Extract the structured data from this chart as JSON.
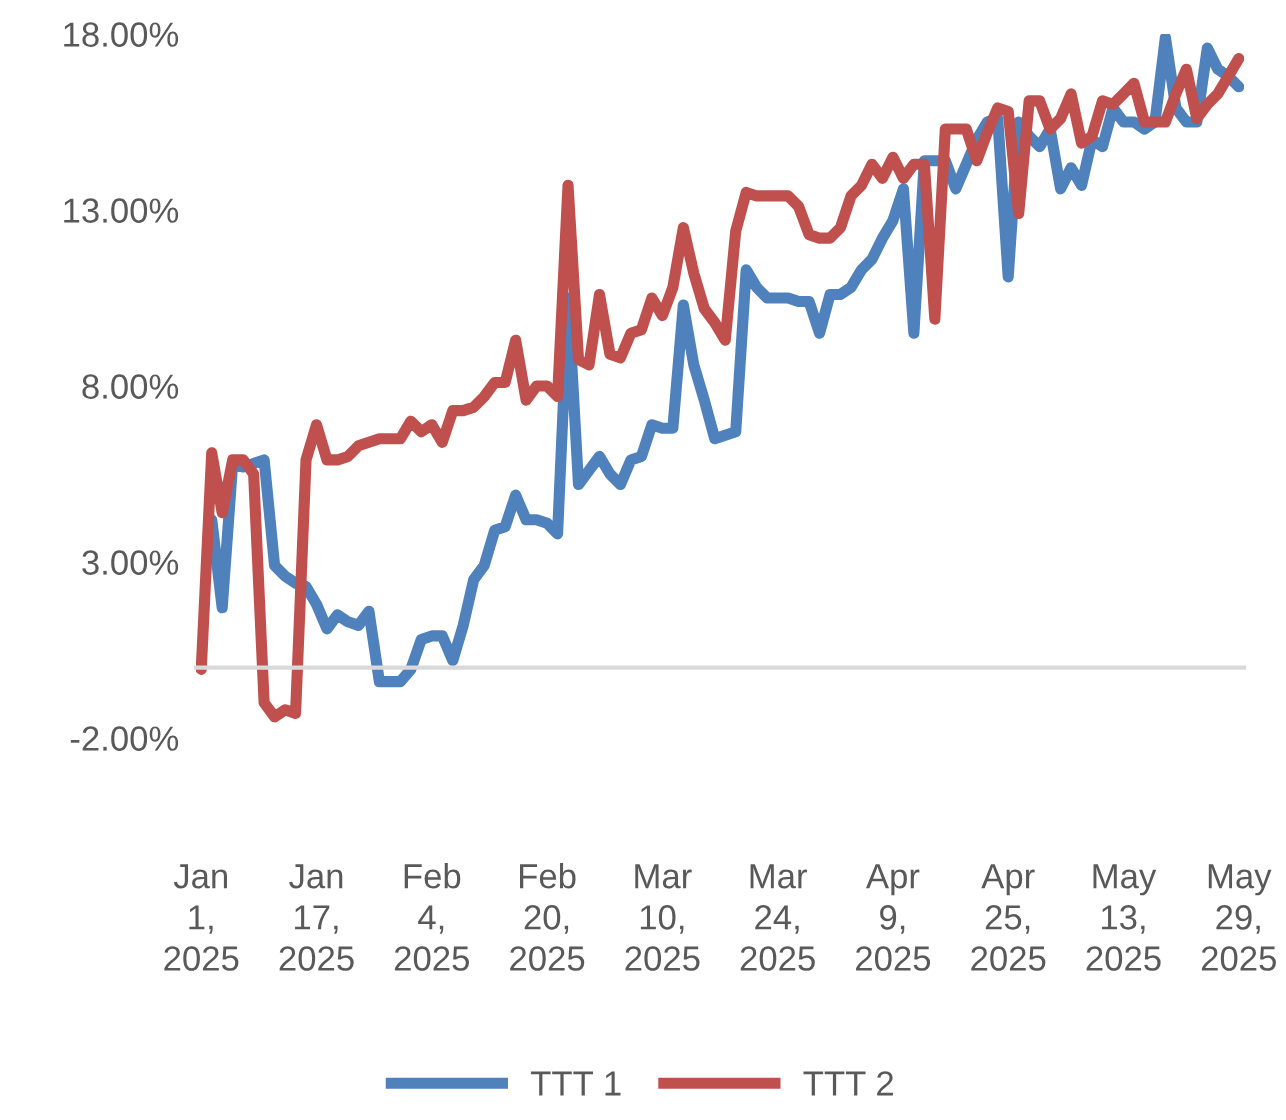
{
  "chart_data": {
    "type": "line",
    "categories": [
      "Jan 1, 2025",
      null,
      null,
      null,
      null,
      null,
      null,
      null,
      null,
      null,
      null,
      "Jan 17, 2025",
      null,
      null,
      null,
      null,
      null,
      null,
      null,
      null,
      null,
      null,
      "Feb 4, 2025",
      null,
      null,
      null,
      null,
      null,
      null,
      null,
      null,
      null,
      null,
      "Feb 20, 2025",
      null,
      null,
      null,
      null,
      null,
      null,
      null,
      null,
      null,
      null,
      "Mar 10, 2025",
      null,
      null,
      null,
      null,
      null,
      null,
      null,
      null,
      null,
      null,
      "Mar 24, 2025",
      null,
      null,
      null,
      null,
      null,
      null,
      null,
      null,
      null,
      null,
      "Apr 9, 2025",
      null,
      null,
      null,
      null,
      null,
      null,
      null,
      null,
      null,
      null,
      "Apr 25, 2025",
      null,
      null,
      null,
      null,
      null,
      null,
      null,
      null,
      null,
      null,
      "May 13, 2025",
      null,
      null,
      null,
      null,
      null,
      null,
      null,
      null,
      null,
      null,
      "May 29, 2025"
    ],
    "series": [
      {
        "name": "TTT 1",
        "color": "#4f81bd",
        "values": [
          null,
          4.2,
          1.7,
          5.8,
          5.7,
          5.8,
          5.9,
          2.9,
          2.6,
          2.4,
          2.3,
          1.8,
          1.1,
          1.5,
          1.3,
          1.2,
          1.6,
          -0.4,
          -0.4,
          -0.4,
          -0.05,
          0.8,
          0.9,
          0.9,
          0.2,
          1.2,
          2.5,
          2.9,
          3.9,
          4.0,
          4.9,
          4.2,
          4.2,
          4.1,
          3.8,
          10.5,
          5.2,
          5.6,
          6.0,
          5.5,
          5.2,
          5.9,
          6.0,
          6.9,
          6.8,
          6.8,
          10.3,
          8.6,
          7.6,
          6.5,
          6.6,
          6.7,
          11.3,
          10.8,
          10.5,
          10.5,
          10.5,
          10.4,
          10.4,
          9.5,
          10.6,
          10.6,
          10.8,
          11.3,
          11.6,
          12.2,
          12.7,
          13.6,
          9.5,
          14.4,
          14.4,
          14.4,
          13.6,
          14.3,
          15.0,
          15.5,
          15.6,
          11.1,
          15.5,
          15.1,
          14.8,
          15.3,
          13.6,
          14.2,
          13.7,
          15.0,
          14.8,
          15.9,
          15.5,
          15.5,
          15.3,
          15.5,
          17.9,
          15.9,
          15.5,
          15.5,
          17.6,
          17.0,
          16.8,
          16.5
        ]
      },
      {
        "name": "TTT 2",
        "color": "#c0504d",
        "values": [
          -0.05,
          6.1,
          4.4,
          5.9,
          5.9,
          5.5,
          -1.0,
          -1.4,
          -1.2,
          -1.3,
          5.9,
          6.9,
          5.9,
          5.9,
          6.0,
          6.3,
          6.4,
          6.5,
          6.5,
          6.5,
          7.0,
          6.7,
          6.9,
          6.4,
          7.3,
          7.3,
          7.4,
          7.7,
          8.1,
          8.1,
          9.3,
          7.6,
          8.0,
          8.0,
          7.7,
          13.7,
          8.75,
          8.6,
          10.6,
          8.9,
          8.8,
          9.5,
          9.6,
          10.5,
          10.0,
          10.8,
          12.5,
          11.2,
          10.2,
          9.8,
          9.3,
          12.4,
          13.5,
          13.4,
          13.4,
          13.4,
          13.4,
          13.1,
          12.3,
          12.2,
          12.2,
          12.5,
          13.4,
          13.7,
          14.3,
          13.9,
          14.5,
          13.9,
          14.3,
          14.3,
          9.9,
          15.3,
          15.3,
          15.3,
          14.4,
          15.2,
          15.9,
          15.8,
          12.9,
          16.1,
          16.1,
          15.3,
          15.6,
          16.3,
          14.9,
          15.1,
          16.1,
          16.0,
          16.3,
          16.6,
          15.5,
          15.5,
          15.5,
          16.3,
          17.0,
          15.6,
          16.0,
          16.3,
          16.8,
          17.3
        ]
      }
    ],
    "ylim": [
      -2,
      18
    ],
    "yticks": [
      {
        "value": -2,
        "label": "-2.00%"
      },
      {
        "value": 3,
        "label": "3.00%"
      },
      {
        "value": 8,
        "label": "8.00%"
      },
      {
        "value": 13,
        "label": "13.00%"
      },
      {
        "value": 18,
        "label": "18.00%"
      }
    ],
    "grid": false,
    "legend": "bottom",
    "marker": "none",
    "line_style": "solid"
  }
}
